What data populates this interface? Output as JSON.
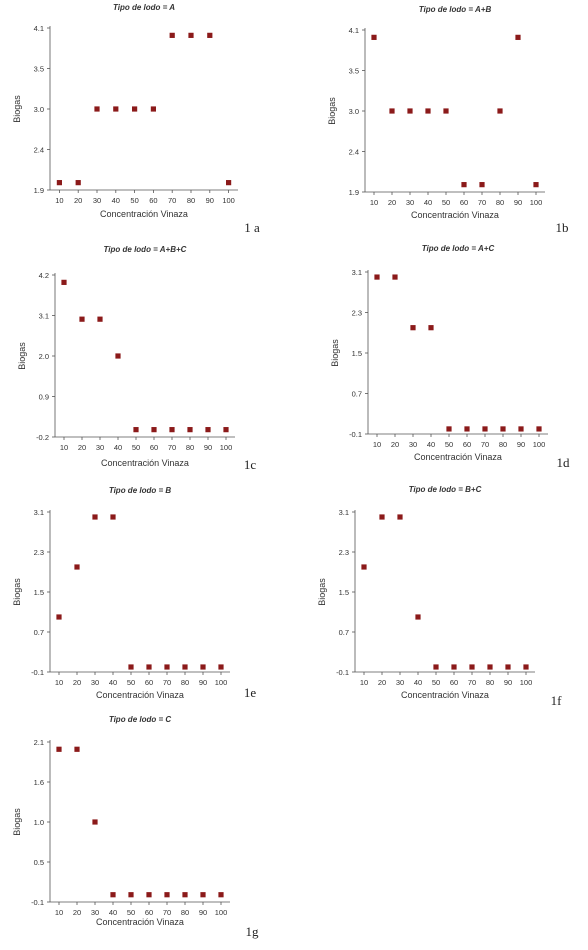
{
  "chart_data": [
    {
      "type": "scatter",
      "panel": "1 a",
      "title": "Tipo de lodo = A",
      "xlabel": "Concentración Vinaza",
      "ylabel": "Biogas",
      "x": [
        10,
        20,
        30,
        40,
        50,
        60,
        70,
        80,
        90,
        100
      ],
      "y": [
        2,
        2,
        3,
        3,
        3,
        3,
        4,
        4,
        4,
        2
      ],
      "xticks": [
        "10",
        "20",
        "30",
        "40",
        "50",
        "60",
        "70",
        "80",
        "90",
        "100"
      ],
      "yticks": [
        "4.1",
        "3.5",
        "3.0",
        "2.4",
        "1.9"
      ],
      "ylim": [
        1.9,
        4.1
      ],
      "grid": false
    },
    {
      "type": "scatter",
      "panel": "1b",
      "title": "Tipo de lodo = A+B",
      "xlabel": "Concentración Vinaza",
      "ylabel": "Biogas",
      "x": [
        10,
        20,
        30,
        40,
        50,
        60,
        70,
        80,
        90,
        100
      ],
      "y": [
        4,
        3,
        3,
        3,
        3,
        2,
        2,
        3,
        4,
        2
      ],
      "xticks": [
        "10",
        "20",
        "30",
        "40",
        "50",
        "60",
        "70",
        "80",
        "90",
        "100"
      ],
      "yticks": [
        "4.1",
        "3.5",
        "3.0",
        "2.4",
        "1.9"
      ],
      "ylim": [
        1.9,
        4.1
      ],
      "grid": false
    },
    {
      "type": "scatter",
      "panel": "1c",
      "title": "Tipo de lodo = A+B+C",
      "xlabel": "Concentración Vinaza",
      "ylabel": "Biogas",
      "x": [
        10,
        20,
        30,
        40,
        50,
        60,
        70,
        80,
        90,
        100
      ],
      "y": [
        4,
        3,
        3,
        2,
        0,
        0,
        0,
        0,
        0,
        0
      ],
      "xticks": [
        "10",
        "20",
        "30",
        "40",
        "50",
        "60",
        "70",
        "80",
        "90",
        "100"
      ],
      "yticks": [
        "4.2",
        "3.1",
        "2.0",
        "0.9",
        "-0.2"
      ],
      "ylim": [
        -0.2,
        4.2
      ],
      "grid": false
    },
    {
      "type": "scatter",
      "panel": "1d",
      "title": "Tipo de lodo = A+C",
      "xlabel": "Concentración Vinaza",
      "ylabel": "Biogas",
      "x": [
        10,
        20,
        30,
        40,
        50,
        60,
        70,
        80,
        90,
        100
      ],
      "y": [
        3,
        3,
        2,
        2,
        0,
        0,
        0,
        0,
        0,
        0
      ],
      "xticks": [
        "10",
        "20",
        "30",
        "40",
        "50",
        "60",
        "70",
        "80",
        "90",
        "100"
      ],
      "yticks": [
        "3.1",
        "2.3",
        "1.5",
        "0.7",
        "-0.1"
      ],
      "ylim": [
        -0.1,
        3.1
      ],
      "grid": false
    },
    {
      "type": "scatter",
      "panel": "1e",
      "title": "Tipo de lodo = B",
      "xlabel": "Concentración Vinaza",
      "ylabel": "Biogas",
      "x": [
        10,
        20,
        30,
        40,
        50,
        60,
        70,
        80,
        90,
        100
      ],
      "y": [
        1,
        2,
        3,
        3,
        0,
        0,
        0,
        0,
        0,
        0
      ],
      "xticks": [
        "10",
        "20",
        "30",
        "40",
        "50",
        "60",
        "70",
        "80",
        "90",
        "100"
      ],
      "yticks": [
        "3.1",
        "2.3",
        "1.5",
        "0.7",
        "-0.1"
      ],
      "ylim": [
        -0.1,
        3.1
      ],
      "grid": false
    },
    {
      "type": "scatter",
      "panel": "1f",
      "title": "Tipo de lodo = B+C",
      "xlabel": "Concentración Vinaza",
      "ylabel": "Biogas",
      "x": [
        10,
        20,
        30,
        40,
        50,
        60,
        70,
        80,
        90,
        100
      ],
      "y": [
        2,
        3,
        3,
        1,
        0,
        0,
        0,
        0,
        0,
        0
      ],
      "xticks": [
        "10",
        "20",
        "30",
        "40",
        "50",
        "60",
        "70",
        "80",
        "90",
        "100"
      ],
      "yticks": [
        "3.1",
        "2.3",
        "1.5",
        "0.7",
        "-0.1"
      ],
      "ylim": [
        -0.1,
        3.1
      ],
      "grid": false
    },
    {
      "type": "scatter",
      "panel": "1g",
      "title": "Tipo de lodo = C",
      "xlabel": "Concentración Vinaza",
      "ylabel": "Biogas",
      "x": [
        10,
        20,
        30,
        40,
        50,
        60,
        70,
        80,
        90,
        100
      ],
      "y": [
        2,
        2,
        1,
        0,
        0,
        0,
        0,
        0,
        0,
        0
      ],
      "xticks": [
        "10",
        "20",
        "30",
        "40",
        "50",
        "60",
        "70",
        "80",
        "90",
        "100"
      ],
      "yticks": [
        "2.1",
        "1.6",
        "1.0",
        "0.5",
        "-0.1"
      ],
      "ylim": [
        -0.1,
        2.1
      ],
      "grid": false
    }
  ],
  "colors": {
    "marker": "#8b1a1a",
    "axis": "#555555",
    "text": "#333333"
  }
}
